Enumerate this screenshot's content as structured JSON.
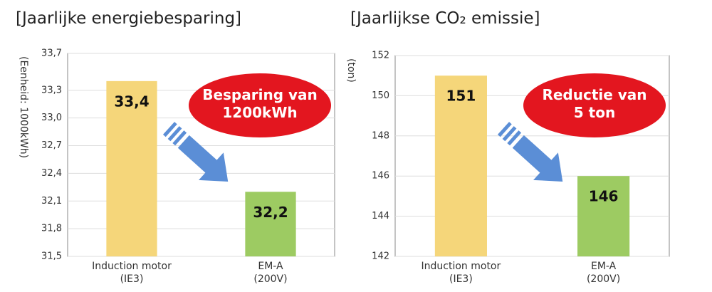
{
  "chart_data": [
    {
      "type": "bar",
      "title": "[Jaarlijke energiebesparing]",
      "y_label": "(Eenheid: 1000kWh)",
      "categories": [
        "Induction motor\n(IE3)",
        "EM-A\n(200V)"
      ],
      "values": [
        33.4,
        32.2
      ],
      "value_labels": [
        "33,4",
        "32,2"
      ],
      "colors": [
        "#f5d67a",
        "#9dcb62"
      ],
      "ylim": [
        31.5,
        33.7
      ],
      "yticks": [
        {
          "value": 31.5,
          "label": "31,5"
        },
        {
          "value": 31.8,
          "label": "31,8"
        },
        {
          "value": 32.1,
          "label": "32,1"
        },
        {
          "value": 32.4,
          "label": "32,4"
        },
        {
          "value": 32.7,
          "label": "32,7"
        },
        {
          "value": 33.0,
          "label": "33,0"
        },
        {
          "value": 33.3,
          "label": "33,3"
        },
        {
          "value": 33.7,
          "label": "33,7"
        }
      ],
      "grid": true,
      "annotation": "Besparing van\n1200kWh"
    },
    {
      "type": "bar",
      "title": "[Jaarlijkse CO₂ emissie]",
      "y_label": "(ton)",
      "categories": [
        "Induction motor\n(IE3)",
        "EM-A\n(200V)"
      ],
      "values": [
        151,
        146
      ],
      "colors": [
        "#f5d67a",
        "#9dcb62"
      ],
      "ylim": [
        142,
        152
      ],
      "yticks": [
        142,
        144,
        146,
        148,
        150,
        152
      ],
      "grid": true,
      "annotation": "Reductie van\n5 ton"
    }
  ]
}
